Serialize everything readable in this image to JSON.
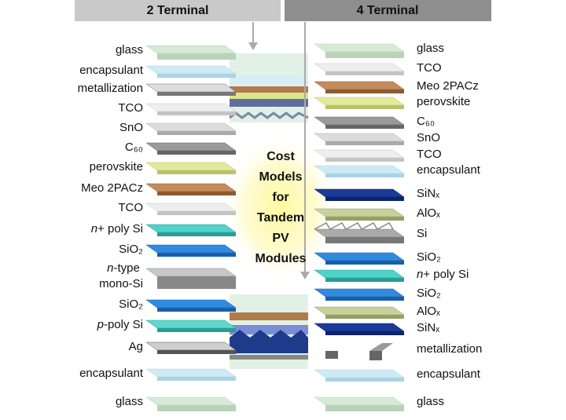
{
  "header": {
    "left": "2 Terminal",
    "right": "4 Terminal"
  },
  "left_layers": [
    "glass",
    "encapsulant",
    "metallization",
    "TCO",
    "SnO",
    "C₆₀",
    "perovskite",
    "Meo 2PACz",
    "TCO",
    "n+ poly Si",
    "SiO₂",
    "n-type mono-Si",
    "SiO₂",
    "p-poly Si",
    "Ag",
    "encapsulant",
    "glass"
  ],
  "right_layers": [
    "glass",
    "TCO",
    "Meo 2PACz",
    "perovskite",
    "C₆₀",
    "SnO",
    "TCO",
    "encapsulant",
    "SiNₓ",
    "AlOₓ",
    "Si",
    "SiO₂",
    "n+ poly Si",
    "SiO₂",
    "AlOₓ",
    "SiNₓ",
    "metallization",
    "encapsulant",
    "glass"
  ],
  "center_title": [
    "Cost",
    "Models",
    "for",
    "Tandem",
    "PV",
    "Modules"
  ]
}
